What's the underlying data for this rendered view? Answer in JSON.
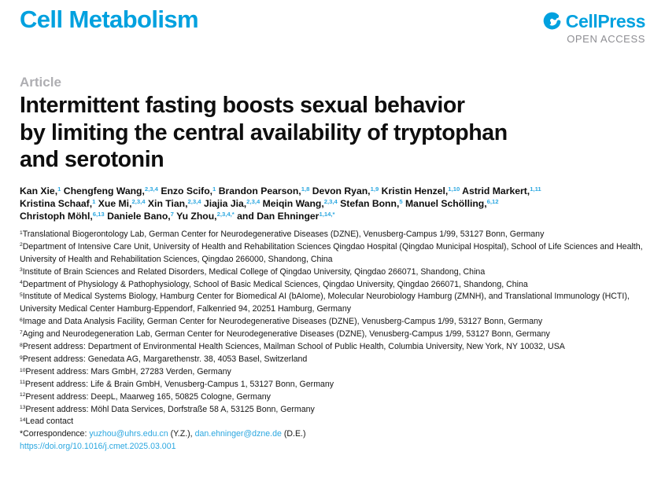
{
  "colors": {
    "accent": "#00A1DF",
    "link": "#2BA7E0",
    "kicker_gray": "#AEAEB2",
    "open_access_gray": "#8E8E93"
  },
  "header": {
    "journal_name": "Cell Metabolism",
    "publisher": {
      "name": "CellPress",
      "open_access": "OPEN ACCESS",
      "logo_icon": "cellpress-swoosh-icon"
    }
  },
  "article": {
    "kicker": "Article",
    "title_lines": [
      "Intermittent fasting boosts sexual behavior",
      "by limiting the central availability of tryptophan",
      "and serotonin"
    ]
  },
  "authors": {
    "lines": [
      [
        {
          "text": "Kan Xie,"
        },
        {
          "sup": "1"
        },
        {
          "text": " Chengfeng Wang,"
        },
        {
          "sup": "2,3,4"
        },
        {
          "text": " Enzo Scifo,"
        },
        {
          "sup": "1"
        },
        {
          "text": " Brandon Pearson,"
        },
        {
          "sup": "1,8"
        },
        {
          "text": " Devon Ryan,"
        },
        {
          "sup": "1,9"
        },
        {
          "text": " Kristin Henzel,"
        },
        {
          "sup": "1,10"
        },
        {
          "text": " Astrid Markert,"
        },
        {
          "sup": "1,11"
        }
      ],
      [
        {
          "text": "Kristina Schaaf,"
        },
        {
          "sup": "1"
        },
        {
          "text": " Xue Mi,"
        },
        {
          "sup": "2,3,4"
        },
        {
          "text": " Xin Tian,"
        },
        {
          "sup": "2,3,4"
        },
        {
          "text": " Jiajia Jia,"
        },
        {
          "sup": "2,3,4"
        },
        {
          "text": " Meiqin Wang,"
        },
        {
          "sup": "2,3,4"
        },
        {
          "text": " Stefan Bonn,"
        },
        {
          "sup": "5"
        },
        {
          "text": " Manuel Schölling,"
        },
        {
          "sup": "6,12"
        }
      ],
      [
        {
          "text": "Christoph Möhl,"
        },
        {
          "sup": "6,13"
        },
        {
          "text": " Daniele Bano,"
        },
        {
          "sup": "7"
        },
        {
          "text": " Yu Zhou,"
        },
        {
          "sup": "2,3,4,*"
        },
        {
          "text": " and Dan Ehninger"
        },
        {
          "sup": "1,14,*"
        }
      ]
    ]
  },
  "affiliations": [
    {
      "sup": "1",
      "text": "Translational Biogerontology Lab, German Center for Neurodegenerative Diseases (DZNE), Venusberg-Campus 1/99, 53127 Bonn, Germany"
    },
    {
      "sup": "2",
      "text": "Department of Intensive Care Unit, University of Health and Rehabilitation Sciences Qingdao Hospital (Qingdao Municipal Hospital), School of Life Sciences and Health, University of Health and Rehabilitation Sciences, Qingdao 266000, Shandong, China"
    },
    {
      "sup": "3",
      "text": "Institute of Brain Sciences and Related Disorders, Medical College of Qingdao University, Qingdao 266071, Shandong, China"
    },
    {
      "sup": "4",
      "text": "Department of Physiology & Pathophysiology, School of Basic Medical Sciences, Qingdao University, Qingdao 266071, Shandong, China"
    },
    {
      "sup": "5",
      "text": "Institute of Medical Systems Biology, Hamburg Center for Biomedical AI (bAIome), Molecular Neurobiology Hamburg (ZMNH), and Translational Immunology (HCTI), University Medical Center Hamburg-Eppendorf, Falkenried 94, 20251 Hamburg, Germany"
    },
    {
      "sup": "6",
      "text": "Image and Data Analysis Facility, German Center for Neurodegenerative Diseases (DZNE), Venusberg-Campus 1/99, 53127 Bonn, Germany"
    },
    {
      "sup": "7",
      "text": "Aging and Neurodegeneration Lab, German Center for Neurodegenerative Diseases (DZNE), Venusberg-Campus 1/99, 53127 Bonn, Germany"
    },
    {
      "sup": "8",
      "text": "Present address: Department of Environmental Health Sciences, Mailman School of Public Health, Columbia University, New York, NY 10032, USA"
    },
    {
      "sup": "9",
      "text": "Present address: Genedata AG, Margarethenstr. 38, 4053 Basel, Switzerland"
    },
    {
      "sup": "10",
      "text": "Present address: Mars GmbH, 27283 Verden, Germany"
    },
    {
      "sup": "11",
      "text": "Present address: Life & Brain GmbH, Venusberg-Campus 1, 53127 Bonn, Germany"
    },
    {
      "sup": "12",
      "text": "Present address: DeepL, Maarweg 165, 50825 Cologne, Germany"
    },
    {
      "sup": "13",
      "text": "Present address: Möhl Data Services, Dorfstraße 58 A, 53125 Bonn, Germany"
    },
    {
      "sup": "14",
      "text": "Lead contact"
    }
  ],
  "correspondence": {
    "prefix": "*Correspondence: ",
    "contacts": [
      {
        "email": "yuzhou@uhrs.edu.cn",
        "suffix": " (Y.Z.), "
      },
      {
        "email": "dan.ehninger@dzne.de",
        "suffix": " (D.E.)"
      }
    ]
  },
  "doi": "https://doi.org/10.1016/j.cmet.2025.03.001"
}
